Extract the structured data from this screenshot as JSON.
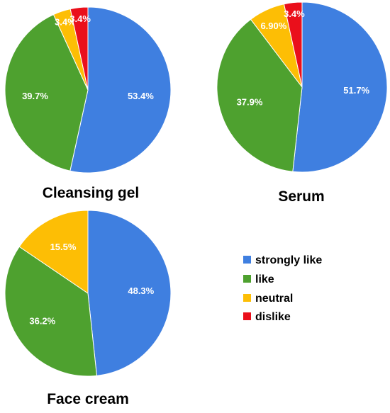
{
  "chart_data": [
    {
      "type": "pie",
      "title": "Cleansing gel",
      "categories": [
        "strongly like",
        "like",
        "neutral",
        "dislike"
      ],
      "values": [
        53.4,
        39.7,
        3.4,
        3.4
      ],
      "labels": [
        "53.4%",
        "39.7%",
        "3.4%",
        "3.4%"
      ]
    },
    {
      "type": "pie",
      "title": "Serum",
      "categories": [
        "strongly like",
        "like",
        "neutral",
        "dislike"
      ],
      "values": [
        51.7,
        37.9,
        6.9,
        3.4
      ],
      "labels": [
        "51.7%",
        "37.9%",
        "6.90%",
        "3.4%"
      ]
    },
    {
      "type": "pie",
      "title": "Face cream",
      "categories": [
        "strongly like",
        "like",
        "neutral"
      ],
      "values": [
        48.3,
        36.2,
        15.5
      ],
      "labels": [
        "48.3%",
        "36.2%",
        "15.5%"
      ]
    }
  ],
  "legend": {
    "placement": "right",
    "items": [
      {
        "label": "strongly like",
        "color": "#3f7fe0"
      },
      {
        "label": "like",
        "color": "#4ea12f"
      },
      {
        "label": "neutral",
        "color": "#fdbe05"
      },
      {
        "label": "dislike",
        "color": "#ea0f1b"
      }
    ]
  },
  "colors": {
    "strongly like": "#3f7fe0",
    "like": "#4ea12f",
    "neutral": "#fdbe05",
    "dislike": "#ea0f1b"
  }
}
